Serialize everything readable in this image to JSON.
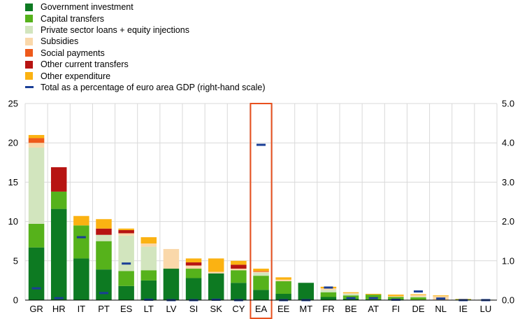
{
  "chart_data": {
    "type": "bar",
    "stacked": true,
    "categories": [
      "GR",
      "HR",
      "IT",
      "PT",
      "ES",
      "LT",
      "LV",
      "SI",
      "SK",
      "CY",
      "EA",
      "EE",
      "MT",
      "FR",
      "BE",
      "AT",
      "FI",
      "DE",
      "NL",
      "IE",
      "LU"
    ],
    "highlight_category": "EA",
    "highlight_color": "#E8501E",
    "series": [
      {
        "name": "Government investment",
        "color": "#0D7A22",
        "values": [
          6.7,
          11.6,
          5.3,
          3.9,
          1.8,
          2.5,
          4.0,
          2.8,
          3.4,
          2.2,
          1.3,
          0.8,
          2.2,
          0.4,
          0.2,
          0.1,
          0.1,
          0.05,
          0.0,
          0.0,
          0.0
        ]
      },
      {
        "name": "Capital transfers",
        "color": "#56B21B",
        "values": [
          3.0,
          2.2,
          4.2,
          3.6,
          1.9,
          1.3,
          0.0,
          1.2,
          0.0,
          1.6,
          1.8,
          1.6,
          0.0,
          0.6,
          0.4,
          0.6,
          0.3,
          0.3,
          0.0,
          0.1,
          0.05
        ]
      },
      {
        "name": "Private sector loans + equity injections",
        "color": "#D2E5BE",
        "values": [
          9.7,
          0.0,
          0.0,
          0.8,
          4.5,
          3.0,
          0.0,
          0.0,
          0.0,
          0.0,
          0.4,
          0.0,
          0.0,
          0.3,
          0.2,
          0.0,
          0.0,
          0.1,
          0.0,
          0.0,
          0.0
        ]
      },
      {
        "name": "Subsidies",
        "color": "#FAD8AA",
        "values": [
          0.6,
          0.0,
          0.0,
          0.0,
          0.3,
          0.4,
          2.5,
          0.4,
          0.2,
          0.2,
          0.1,
          0.2,
          0.0,
          0.2,
          0.1,
          0.0,
          0.1,
          0.2,
          0.5,
          0.0,
          0.0
        ]
      },
      {
        "name": "Social payments",
        "color": "#EE5A1B",
        "values": [
          0.6,
          0.0,
          0.0,
          0.0,
          0.0,
          0.0,
          0.0,
          0.0,
          0.0,
          0.0,
          0.1,
          0.0,
          0.0,
          0.0,
          0.0,
          0.0,
          0.0,
          0.0,
          0.0,
          0.0,
          0.0
        ]
      },
      {
        "name": "Other current transfers",
        "color": "#B71412",
        "values": [
          0.0,
          3.1,
          0.0,
          0.8,
          0.4,
          0.0,
          0.0,
          0.4,
          0.0,
          0.5,
          0.0,
          0.0,
          0.0,
          0.0,
          0.0,
          0.0,
          0.0,
          0.0,
          0.0,
          0.0,
          0.0
        ]
      },
      {
        "name": "Other expenditure",
        "color": "#FBB212",
        "values": [
          0.4,
          0.0,
          1.2,
          1.2,
          0.2,
          0.8,
          0.0,
          0.5,
          1.7,
          0.5,
          0.3,
          0.3,
          0.0,
          0.2,
          0.1,
          0.1,
          0.2,
          0.1,
          0.1,
          0.05,
          0.0
        ]
      }
    ],
    "line_series": {
      "name": "Total as a percentage of euro area GDP (right-hand scale)",
      "color": "#1A3E96",
      "axis": "right",
      "values": [
        0.3,
        0.05,
        1.6,
        0.18,
        0.93,
        0.01,
        0.0,
        0.0,
        0.01,
        0.0,
        3.95,
        0.0,
        0.0,
        0.32,
        0.05,
        0.05,
        0.01,
        0.22,
        0.04,
        0.0,
        0.0
      ]
    },
    "y_left": {
      "min": 0,
      "max": 25,
      "ticks": [
        "0",
        "5",
        "10",
        "15",
        "20",
        "25"
      ],
      "tick_values": [
        0,
        5,
        10,
        15,
        20,
        25
      ]
    },
    "y_right": {
      "min": 0,
      "max": 5,
      "ticks": [
        "0.0",
        "1.0",
        "2.0",
        "3.0",
        "4.0",
        "5.0"
      ],
      "tick_values": [
        0,
        1,
        2,
        3,
        4,
        5
      ]
    },
    "grid": "horizontal",
    "legend_position": "top-left"
  }
}
